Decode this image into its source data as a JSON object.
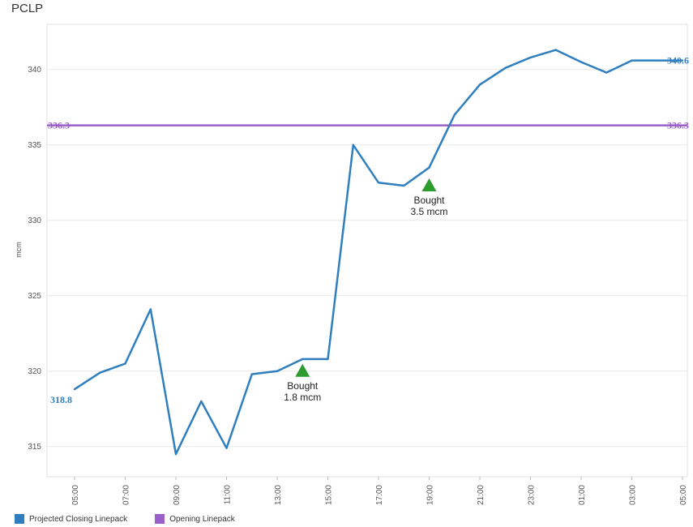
{
  "title": "PCLP",
  "colors": {
    "projected": "#2f7fbf",
    "opening": "#9a5fc8",
    "marker": "#2e9b2e",
    "axis": "#bbbbbb",
    "grid": "#e9e9e9",
    "tick": "#555555"
  },
  "chart_data": {
    "type": "line",
    "ylabel": "mcm",
    "ylim": [
      313,
      343
    ],
    "yticks": [
      315,
      320,
      325,
      330,
      335,
      340
    ],
    "xticks": [
      "05:00",
      "07:00",
      "09:00",
      "11:00",
      "13:00",
      "15:00",
      "17:00",
      "19:00",
      "21:00",
      "23:00",
      "01:00",
      "03:00",
      "05:00"
    ],
    "series": [
      {
        "name": "Projected Closing Linepack",
        "x": [
          0,
          1,
          2,
          3,
          4,
          5,
          6,
          7,
          8,
          9,
          10,
          11,
          12,
          13,
          14,
          15,
          16,
          17,
          18,
          19,
          20,
          21,
          22,
          23,
          24
        ],
        "values": [
          318.8,
          319.9,
          320.5,
          324.1,
          314.5,
          318.0,
          314.9,
          319.8,
          320.0,
          320.8,
          320.8,
          335.0,
          332.5,
          332.3,
          333.5,
          337.0,
          339.0,
          340.1,
          340.8,
          341.3,
          340.5,
          339.8,
          340.6,
          340.6,
          340.6
        ]
      },
      {
        "name": "Opening Linepack",
        "x": [
          0,
          24
        ],
        "values": [
          336.3,
          336.3
        ]
      }
    ],
    "start_label": "318.8",
    "end_label": "340.6",
    "opening_label_left": "336.3",
    "opening_label_right": "336.3",
    "annotations": [
      {
        "x": 9,
        "y": 320.0,
        "line1": "Bought",
        "line2": "1.8 mcm"
      },
      {
        "x": 14,
        "y": 332.3,
        "line1": "Bought",
        "line2": "3.5 mcm"
      }
    ]
  },
  "legend": [
    {
      "label": "Projected Closing Linepack",
      "color": "#2f7fbf"
    },
    {
      "label": "Opening Linepack",
      "color": "#9a5fc8"
    }
  ]
}
